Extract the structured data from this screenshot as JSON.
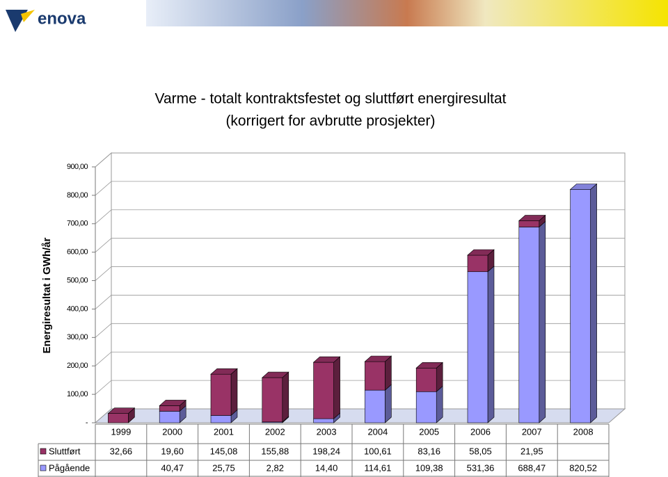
{
  "logo": "enova",
  "chart_data": {
    "type": "bar3d-stacked",
    "title": "Varme - totalt kontraktsfestet og sluttført energiresultat",
    "subtitle": "(korrigert for avbrutte prosjekter)",
    "y_label": "Energiresultat i GWh/år",
    "categories": [
      "1999",
      "2000",
      "2001",
      "2002",
      "2003",
      "2004",
      "2005",
      "2006",
      "2007",
      "2008"
    ],
    "series": [
      {
        "name": "Pågående",
        "color": "#9999ff",
        "side": "#5c5c99",
        "values": [
          null,
          40.47,
          25.75,
          2.82,
          14.4,
          114.61,
          109.38,
          531.36,
          688.47,
          820.52
        ],
        "value_labels": [
          null,
          "40,47",
          "25,75",
          "2,82",
          "14,40",
          "114,61",
          "109,38",
          "531,36",
          "688,47",
          "820,52"
        ]
      },
      {
        "name": "Sluttført",
        "color": "#993366",
        "side": "#5c1f3d",
        "values": [
          32.66,
          19.6,
          145.08,
          155.88,
          198.24,
          100.61,
          83.16,
          58.05,
          21.95,
          null
        ],
        "value_labels": [
          "32,66",
          "19,60",
          "145,08",
          "155,88",
          "198,24",
          "100,61",
          "83,16",
          "58,05",
          "21,95",
          null
        ]
      }
    ],
    "ylim": [
      0,
      900
    ],
    "yticks": [
      {
        "value": 0,
        "label": "-"
      },
      {
        "value": 100,
        "label": "100,00"
      },
      {
        "value": 200,
        "label": "200,00"
      },
      {
        "value": 300,
        "label": "300,00"
      },
      {
        "value": 400,
        "label": "400,00"
      },
      {
        "value": 500,
        "label": "500,00"
      },
      {
        "value": 600,
        "label": "600,00"
      },
      {
        "value": 700,
        "label": "700,00"
      },
      {
        "value": 800,
        "label": "800,00"
      },
      {
        "value": 900,
        "label": "900,00"
      }
    ],
    "grid": true
  }
}
